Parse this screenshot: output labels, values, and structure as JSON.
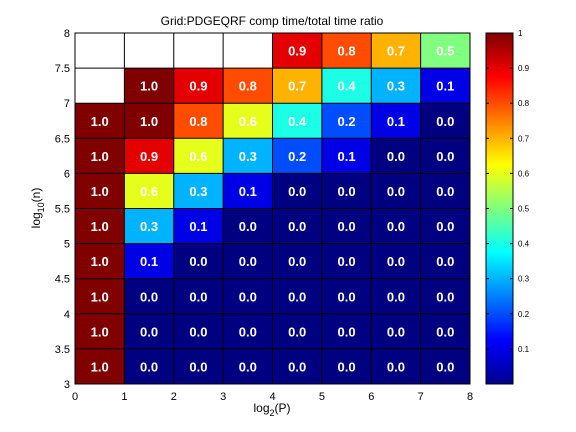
{
  "chart_data": {
    "type": "heatmap",
    "title": "Grid:PDGEQRF comp time/total time ratio",
    "xlabel": "log",
    "xlabel_sub": "2",
    "xlabel_suffix": "(P)",
    "ylabel": "log",
    "ylabel_sub": "10",
    "ylabel_suffix": "(n)",
    "xlim": [
      0,
      8
    ],
    "ylim": [
      3,
      8
    ],
    "x_ticks": [
      0,
      1,
      2,
      3,
      4,
      5,
      6,
      7,
      8
    ],
    "y_ticks": [
      3,
      3.5,
      4,
      4.5,
      5,
      5.5,
      6,
      6.5,
      7,
      7.5,
      8
    ],
    "y_rows": [
      3,
      3.5,
      4,
      4.5,
      5,
      5.5,
      6,
      6.5,
      7,
      7.5
    ],
    "x_cols": [
      0,
      1,
      2,
      3,
      4,
      5,
      6,
      7
    ],
    "values": [
      [
        1.0,
        0.0,
        0.0,
        0.0,
        0.0,
        0.0,
        0.0,
        0.0
      ],
      [
        1.0,
        0.0,
        0.0,
        0.0,
        0.0,
        0.0,
        0.0,
        0.0
      ],
      [
        1.0,
        0.0,
        0.0,
        0.0,
        0.0,
        0.0,
        0.0,
        0.0
      ],
      [
        1.0,
        0.1,
        0.0,
        0.0,
        0.0,
        0.0,
        0.0,
        0.0
      ],
      [
        1.0,
        0.3,
        0.1,
        0.0,
        0.0,
        0.0,
        0.0,
        0.0
      ],
      [
        1.0,
        0.6,
        0.3,
        0.1,
        0.0,
        0.0,
        0.0,
        0.0
      ],
      [
        1.0,
        0.9,
        0.6,
        0.3,
        0.2,
        0.1,
        0.0,
        0.0
      ],
      [
        1.0,
        1.0,
        0.8,
        0.6,
        0.4,
        0.2,
        0.1,
        0.0
      ],
      [
        null,
        1.0,
        0.9,
        0.8,
        0.7,
        0.4,
        0.3,
        0.1
      ],
      [
        null,
        null,
        null,
        null,
        0.9,
        0.8,
        0.7,
        0.5
      ]
    ],
    "colorbar": {
      "colormap": "jet",
      "min": 0,
      "max": 1,
      "ticks": [
        "0.1",
        "0.2",
        "0.3",
        "0.4",
        "0.5",
        "0.6",
        "0.7",
        "0.8",
        "0.9",
        "1"
      ]
    }
  }
}
